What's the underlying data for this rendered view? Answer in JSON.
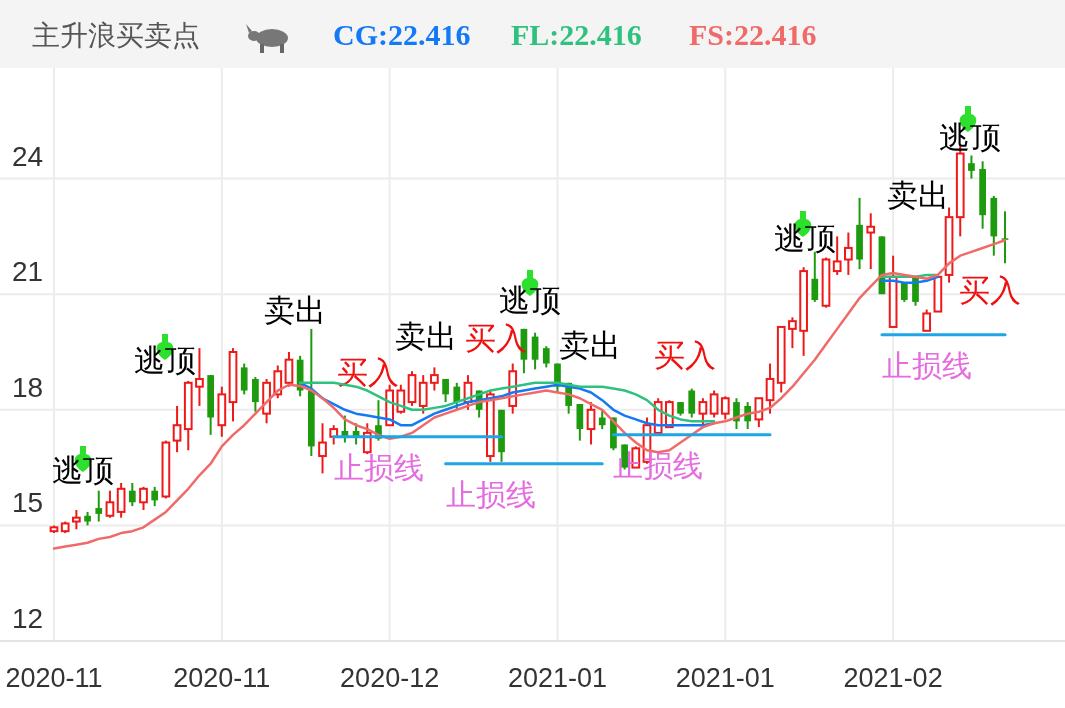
{
  "chart_data": {
    "type": "candlestick",
    "title": "主升浪买卖点",
    "categories": [
      "2020-11",
      null,
      null,
      null,
      null,
      null,
      null,
      null,
      null,
      null,
      null,
      null,
      null,
      null,
      null,
      "2020-11",
      null,
      null,
      null,
      null,
      null,
      null,
      null,
      null,
      null,
      null,
      null,
      null,
      null,
      null,
      "2020-12",
      null,
      null,
      null,
      null,
      null,
      null,
      null,
      null,
      null,
      null,
      null,
      null,
      null,
      null,
      "2021-01",
      null,
      null,
      null,
      null,
      null,
      null,
      null,
      null,
      null,
      null,
      null,
      null,
      null,
      null,
      "2021-01",
      null,
      null,
      null,
      null,
      null,
      null,
      null,
      null,
      null,
      null,
      null,
      null,
      null,
      null,
      "2021-02",
      null,
      null,
      null,
      null,
      null,
      null,
      null,
      null,
      null,
      null
    ],
    "ohlc": [
      [
        14.85,
        15.0,
        14.8,
        14.95
      ],
      [
        14.85,
        15.1,
        14.8,
        15.05
      ],
      [
        15.1,
        15.4,
        14.9,
        15.2
      ],
      [
        15.25,
        15.35,
        15.0,
        15.1
      ],
      [
        15.45,
        15.9,
        15.1,
        15.3
      ],
      [
        15.25,
        15.9,
        15.2,
        15.6
      ],
      [
        15.35,
        16.1,
        15.2,
        15.95
      ],
      [
        15.9,
        16.1,
        15.5,
        15.6
      ],
      [
        15.6,
        16.0,
        15.4,
        15.95
      ],
      [
        15.9,
        16.0,
        15.5,
        15.65
      ],
      [
        15.75,
        17.2,
        15.7,
        17.15
      ],
      [
        17.2,
        18.1,
        16.9,
        17.6
      ],
      [
        17.5,
        18.75,
        16.95,
        18.7
      ],
      [
        18.6,
        19.6,
        18.1,
        18.8
      ],
      [
        18.9,
        18.9,
        17.35,
        17.8
      ],
      [
        17.6,
        18.6,
        17.3,
        18.4
      ],
      [
        18.2,
        19.6,
        17.7,
        19.5
      ],
      [
        19.1,
        19.2,
        18.4,
        18.5
      ],
      [
        18.8,
        18.85,
        17.95,
        18.2
      ],
      [
        17.9,
        18.8,
        17.65,
        18.7
      ],
      [
        18.4,
        19.15,
        18.3,
        19.0
      ],
      [
        18.7,
        19.5,
        18.6,
        19.3
      ],
      [
        19.3,
        19.4,
        18.35,
        18.5
      ],
      [
        18.5,
        20.1,
        16.8,
        17.05
      ],
      [
        16.8,
        17.65,
        16.35,
        17.15
      ],
      [
        17.3,
        17.6,
        17.1,
        17.5
      ],
      [
        17.45,
        17.85,
        17.15,
        17.3
      ],
      [
        17.45,
        17.65,
        17.1,
        17.3
      ],
      [
        16.9,
        17.65,
        16.85,
        17.4
      ],
      [
        17.6,
        18.25,
        17.2,
        17.25
      ],
      [
        17.6,
        18.65,
        17.6,
        18.5
      ],
      [
        17.95,
        18.65,
        17.9,
        18.5
      ],
      [
        18.2,
        19.0,
        18.1,
        18.9
      ],
      [
        18.1,
        18.9,
        17.9,
        18.7
      ],
      [
        18.7,
        19.1,
        18.5,
        18.9
      ],
      [
        18.8,
        18.8,
        18.2,
        18.4
      ],
      [
        18.6,
        18.7,
        18.0,
        18.2
      ],
      [
        18.2,
        18.9,
        18.0,
        18.7
      ],
      [
        18.5,
        18.5,
        17.8,
        18.0
      ],
      [
        16.8,
        18.5,
        16.65,
        18.4
      ],
      [
        18.0,
        18.0,
        16.65,
        16.9
      ],
      [
        18.1,
        19.2,
        17.9,
        19.0
      ],
      [
        20.1,
        20.1,
        18.95,
        19.3
      ],
      [
        19.9,
        20.0,
        19.05,
        19.3
      ],
      [
        19.6,
        19.65,
        19.1,
        19.2
      ],
      [
        19.2,
        19.2,
        18.45,
        18.6
      ],
      [
        18.7,
        18.7,
        17.9,
        18.1
      ],
      [
        18.15,
        18.15,
        17.2,
        17.5
      ],
      [
        17.5,
        18.2,
        17.1,
        18.0
      ],
      [
        17.8,
        18.0,
        17.5,
        17.6
      ],
      [
        17.8,
        17.8,
        16.95,
        17.0
      ],
      [
        17.1,
        17.1,
        16.45,
        16.5
      ],
      [
        16.5,
        17.05,
        16.5,
        17.0
      ],
      [
        16.65,
        17.8,
        16.6,
        17.6
      ],
      [
        17.4,
        18.3,
        17.4,
        18.2
      ],
      [
        17.55,
        18.25,
        17.55,
        18.2
      ],
      [
        18.2,
        18.2,
        17.85,
        17.9
      ],
      [
        18.5,
        18.55,
        17.8,
        17.9
      ],
      [
        17.9,
        18.3,
        17.6,
        18.2
      ],
      [
        17.9,
        18.5,
        17.8,
        18.4
      ],
      [
        17.9,
        18.35,
        17.75,
        18.3
      ],
      [
        18.2,
        18.3,
        17.5,
        17.7
      ],
      [
        18.1,
        18.2,
        17.5,
        17.7
      ],
      [
        17.75,
        18.3,
        17.55,
        18.3
      ],
      [
        18.25,
        19.2,
        17.9,
        18.8
      ],
      [
        18.7,
        20.15,
        18.45,
        20.15
      ],
      [
        20.1,
        20.4,
        19.6,
        20.3
      ],
      [
        20.05,
        21.7,
        19.4,
        21.6
      ],
      [
        21.4,
        22.1,
        20.8,
        20.85
      ],
      [
        20.7,
        21.95,
        20.65,
        21.9
      ],
      [
        21.6,
        22.5,
        21.5,
        21.85
      ],
      [
        21.9,
        22.6,
        21.5,
        22.2
      ],
      [
        22.8,
        23.5,
        21.65,
        21.9
      ],
      [
        22.6,
        23.1,
        21.65,
        22.75
      ],
      [
        22.5,
        22.5,
        21.0,
        21.0
      ],
      [
        20.15,
        22.0,
        20.15,
        21.45
      ],
      [
        21.3,
        21.3,
        20.8,
        20.85
      ],
      [
        21.45,
        21.45,
        20.7,
        20.8
      ],
      [
        20.05,
        20.6,
        20.05,
        20.5
      ],
      [
        20.55,
        21.45,
        20.55,
        21.45
      ],
      [
        21.5,
        23.25,
        21.3,
        23.0
      ],
      [
        23.0,
        24.9,
        22.5,
        24.65
      ],
      [
        24.4,
        24.6,
        24.0,
        24.2
      ],
      [
        24.25,
        24.45,
        22.7,
        23.05
      ],
      [
        23.5,
        23.55,
        22.0,
        22.5
      ],
      [
        22.45,
        23.15,
        21.8,
        22.42
      ]
    ],
    "series": [
      {
        "name": "CG:22.416",
        "type": "line",
        "color": "#1479f5",
        "values": [
          null,
          null,
          null,
          null,
          null,
          null,
          null,
          null,
          null,
          null,
          null,
          null,
          null,
          null,
          null,
          null,
          null,
          null,
          null,
          null,
          null,
          null,
          18.7,
          18.55,
          18.3,
          18.15,
          18.0,
          17.9,
          17.85,
          17.8,
          17.75,
          17.6,
          17.6,
          17.75,
          17.9,
          18.0,
          18.1,
          18.2,
          18.25,
          18.3,
          18.35,
          18.45,
          18.5,
          18.55,
          18.6,
          18.65,
          18.6,
          18.55,
          18.45,
          18.25,
          18.0,
          17.85,
          17.75,
          17.65,
          17.6,
          17.6,
          17.6,
          17.6,
          17.6,
          17.65,
          null,
          null,
          null,
          null,
          null,
          null,
          null,
          null,
          null,
          null,
          null,
          null,
          null,
          null,
          21.35,
          21.35,
          21.3,
          21.3,
          21.35,
          21.45,
          null,
          null,
          null,
          null,
          null,
          null
        ]
      },
      {
        "name": "FL:22.416",
        "type": "line",
        "color": "#2ec27e",
        "values": [
          null,
          null,
          null,
          null,
          null,
          null,
          null,
          null,
          null,
          null,
          null,
          null,
          null,
          null,
          null,
          null,
          null,
          null,
          null,
          null,
          null,
          null,
          18.7,
          18.7,
          18.7,
          18.7,
          18.65,
          18.6,
          18.5,
          18.35,
          18.2,
          18.1,
          18.0,
          18.0,
          18.05,
          18.1,
          18.2,
          18.3,
          18.4,
          18.5,
          18.55,
          18.6,
          18.65,
          18.7,
          18.7,
          18.7,
          18.65,
          18.6,
          18.6,
          18.6,
          18.55,
          18.5,
          18.4,
          18.25,
          18.0,
          17.85,
          17.75,
          17.7,
          17.7,
          17.7,
          null,
          null,
          null,
          null,
          null,
          null,
          null,
          null,
          null,
          null,
          null,
          null,
          null,
          null,
          21.45,
          21.45,
          21.45,
          21.45,
          21.5,
          21.5,
          null,
          null,
          null,
          null,
          null,
          null
        ]
      },
      {
        "name": "FS:22.416",
        "type": "line",
        "color": "#f06a6a",
        "values": [
          14.4,
          14.45,
          14.5,
          14.55,
          14.65,
          14.7,
          14.8,
          14.85,
          14.95,
          15.15,
          15.35,
          15.65,
          15.95,
          16.3,
          16.6,
          17.05,
          17.35,
          17.6,
          17.9,
          18.2,
          18.5,
          18.65,
          18.62,
          18.5,
          18.3,
          18.05,
          17.75,
          17.6,
          17.5,
          17.35,
          17.25,
          17.3,
          17.4,
          17.6,
          17.8,
          17.9,
          18.0,
          18.1,
          18.2,
          18.25,
          18.3,
          18.35,
          18.4,
          18.45,
          18.5,
          18.45,
          18.4,
          18.3,
          18.15,
          18.0,
          17.7,
          17.4,
          17.15,
          16.95,
          16.9,
          16.95,
          17.15,
          17.35,
          17.55,
          17.65,
          17.7,
          17.8,
          17.9,
          17.95,
          18.05,
          18.3,
          18.6,
          18.95,
          19.3,
          19.7,
          20.1,
          20.5,
          20.9,
          21.2,
          21.5,
          21.55,
          21.5,
          21.45,
          21.4,
          21.5,
          21.8,
          22.0,
          22.1,
          22.2,
          22.3,
          22.4
        ]
      },
      {
        "name": "止损线",
        "type": "line",
        "color": "#1ea5e6",
        "values": [
          null,
          null,
          null,
          null,
          null,
          null,
          null,
          null,
          null,
          null,
          null,
          null,
          null,
          null,
          null,
          null,
          null,
          null,
          null,
          null,
          null,
          null,
          null,
          null,
          null,
          17.3,
          17.3,
          17.3,
          17.3,
          17.3,
          17.3,
          17.3,
          17.3,
          17.3,
          17.3,
          17.3,
          17.3,
          17.3,
          17.3,
          17.3,
          17.3,
          null,
          null,
          null,
          null,
          null,
          null,
          null,
          null,
          null,
          null,
          null,
          null,
          null,
          null,
          null,
          null,
          null,
          null,
          null,
          null,
          null,
          null,
          null,
          null,
          null,
          null,
          null,
          null,
          null,
          null,
          null,
          null,
          null,
          null,
          null,
          null,
          null,
          null,
          null,
          null,
          null,
          null,
          null,
          null,
          null
        ]
      },
      {
        "name": "止损线",
        "type": "line",
        "color": "#1ea5e6",
        "values": [
          null,
          null,
          null,
          null,
          null,
          null,
          null,
          null,
          null,
          null,
          null,
          null,
          null,
          null,
          null,
          null,
          null,
          null,
          null,
          null,
          null,
          null,
          null,
          null,
          null,
          null,
          null,
          null,
          null,
          null,
          null,
          null,
          null,
          null,
          null,
          16.6,
          16.6,
          16.6,
          16.6,
          16.6,
          16.6,
          16.6,
          16.6,
          16.6,
          16.6,
          16.6,
          16.6,
          16.6,
          16.6,
          16.6,
          null,
          null,
          null,
          null,
          null,
          null,
          null,
          null,
          null,
          null,
          null,
          null,
          null,
          null,
          null,
          null,
          null,
          null,
          null,
          null,
          null,
          null,
          null,
          null,
          null,
          null,
          null,
          null,
          null,
          null,
          null,
          null,
          null,
          null,
          null,
          null
        ]
      },
      {
        "name": "止损线",
        "type": "line",
        "color": "#1ea5e6",
        "values": [
          null,
          null,
          null,
          null,
          null,
          null,
          null,
          null,
          null,
          null,
          null,
          null,
          null,
          null,
          null,
          null,
          null,
          null,
          null,
          null,
          null,
          null,
          null,
          null,
          null,
          null,
          null,
          null,
          null,
          null,
          null,
          null,
          null,
          null,
          null,
          null,
          null,
          null,
          null,
          null,
          null,
          null,
          null,
          null,
          null,
          null,
          null,
          null,
          null,
          null,
          17.35,
          17.35,
          17.35,
          17.35,
          17.35,
          17.35,
          17.35,
          17.35,
          17.35,
          17.35,
          17.35,
          17.35,
          17.35,
          17.35,
          17.35,
          null,
          null,
          null,
          null,
          null,
          null,
          null,
          null,
          null,
          null,
          null,
          null,
          null,
          null,
          null,
          null,
          null,
          null,
          null,
          null,
          null
        ]
      },
      {
        "name": "止损线",
        "type": "line",
        "color": "#1ea5e6",
        "values": [
          null,
          null,
          null,
          null,
          null,
          null,
          null,
          null,
          null,
          null,
          null,
          null,
          null,
          null,
          null,
          null,
          null,
          null,
          null,
          null,
          null,
          null,
          null,
          null,
          null,
          null,
          null,
          null,
          null,
          null,
          null,
          null,
          null,
          null,
          null,
          null,
          null,
          null,
          null,
          null,
          null,
          null,
          null,
          null,
          null,
          null,
          null,
          null,
          null,
          null,
          null,
          null,
          null,
          null,
          null,
          null,
          null,
          null,
          null,
          null,
          null,
          null,
          null,
          null,
          null,
          null,
          null,
          null,
          null,
          null,
          null,
          null,
          null,
          null,
          19.95,
          19.95,
          19.95,
          19.95,
          19.95,
          19.95,
          19.95,
          19.95,
          19.95,
          19.95,
          19.95,
          19.95
        ]
      }
    ],
    "ylim": [
      12,
      26.87
    ],
    "yticks": [
      12,
      15,
      18,
      21,
      24
    ],
    "grid": true,
    "legend": "top",
    "annotations": [
      "逃顶",
      "逃顶",
      "逃顶",
      "逃顶",
      "逃顶",
      "卖出",
      "卖出",
      "卖出",
      "卖出",
      "买入",
      "买入",
      "买入",
      "买入"
    ]
  }
}
